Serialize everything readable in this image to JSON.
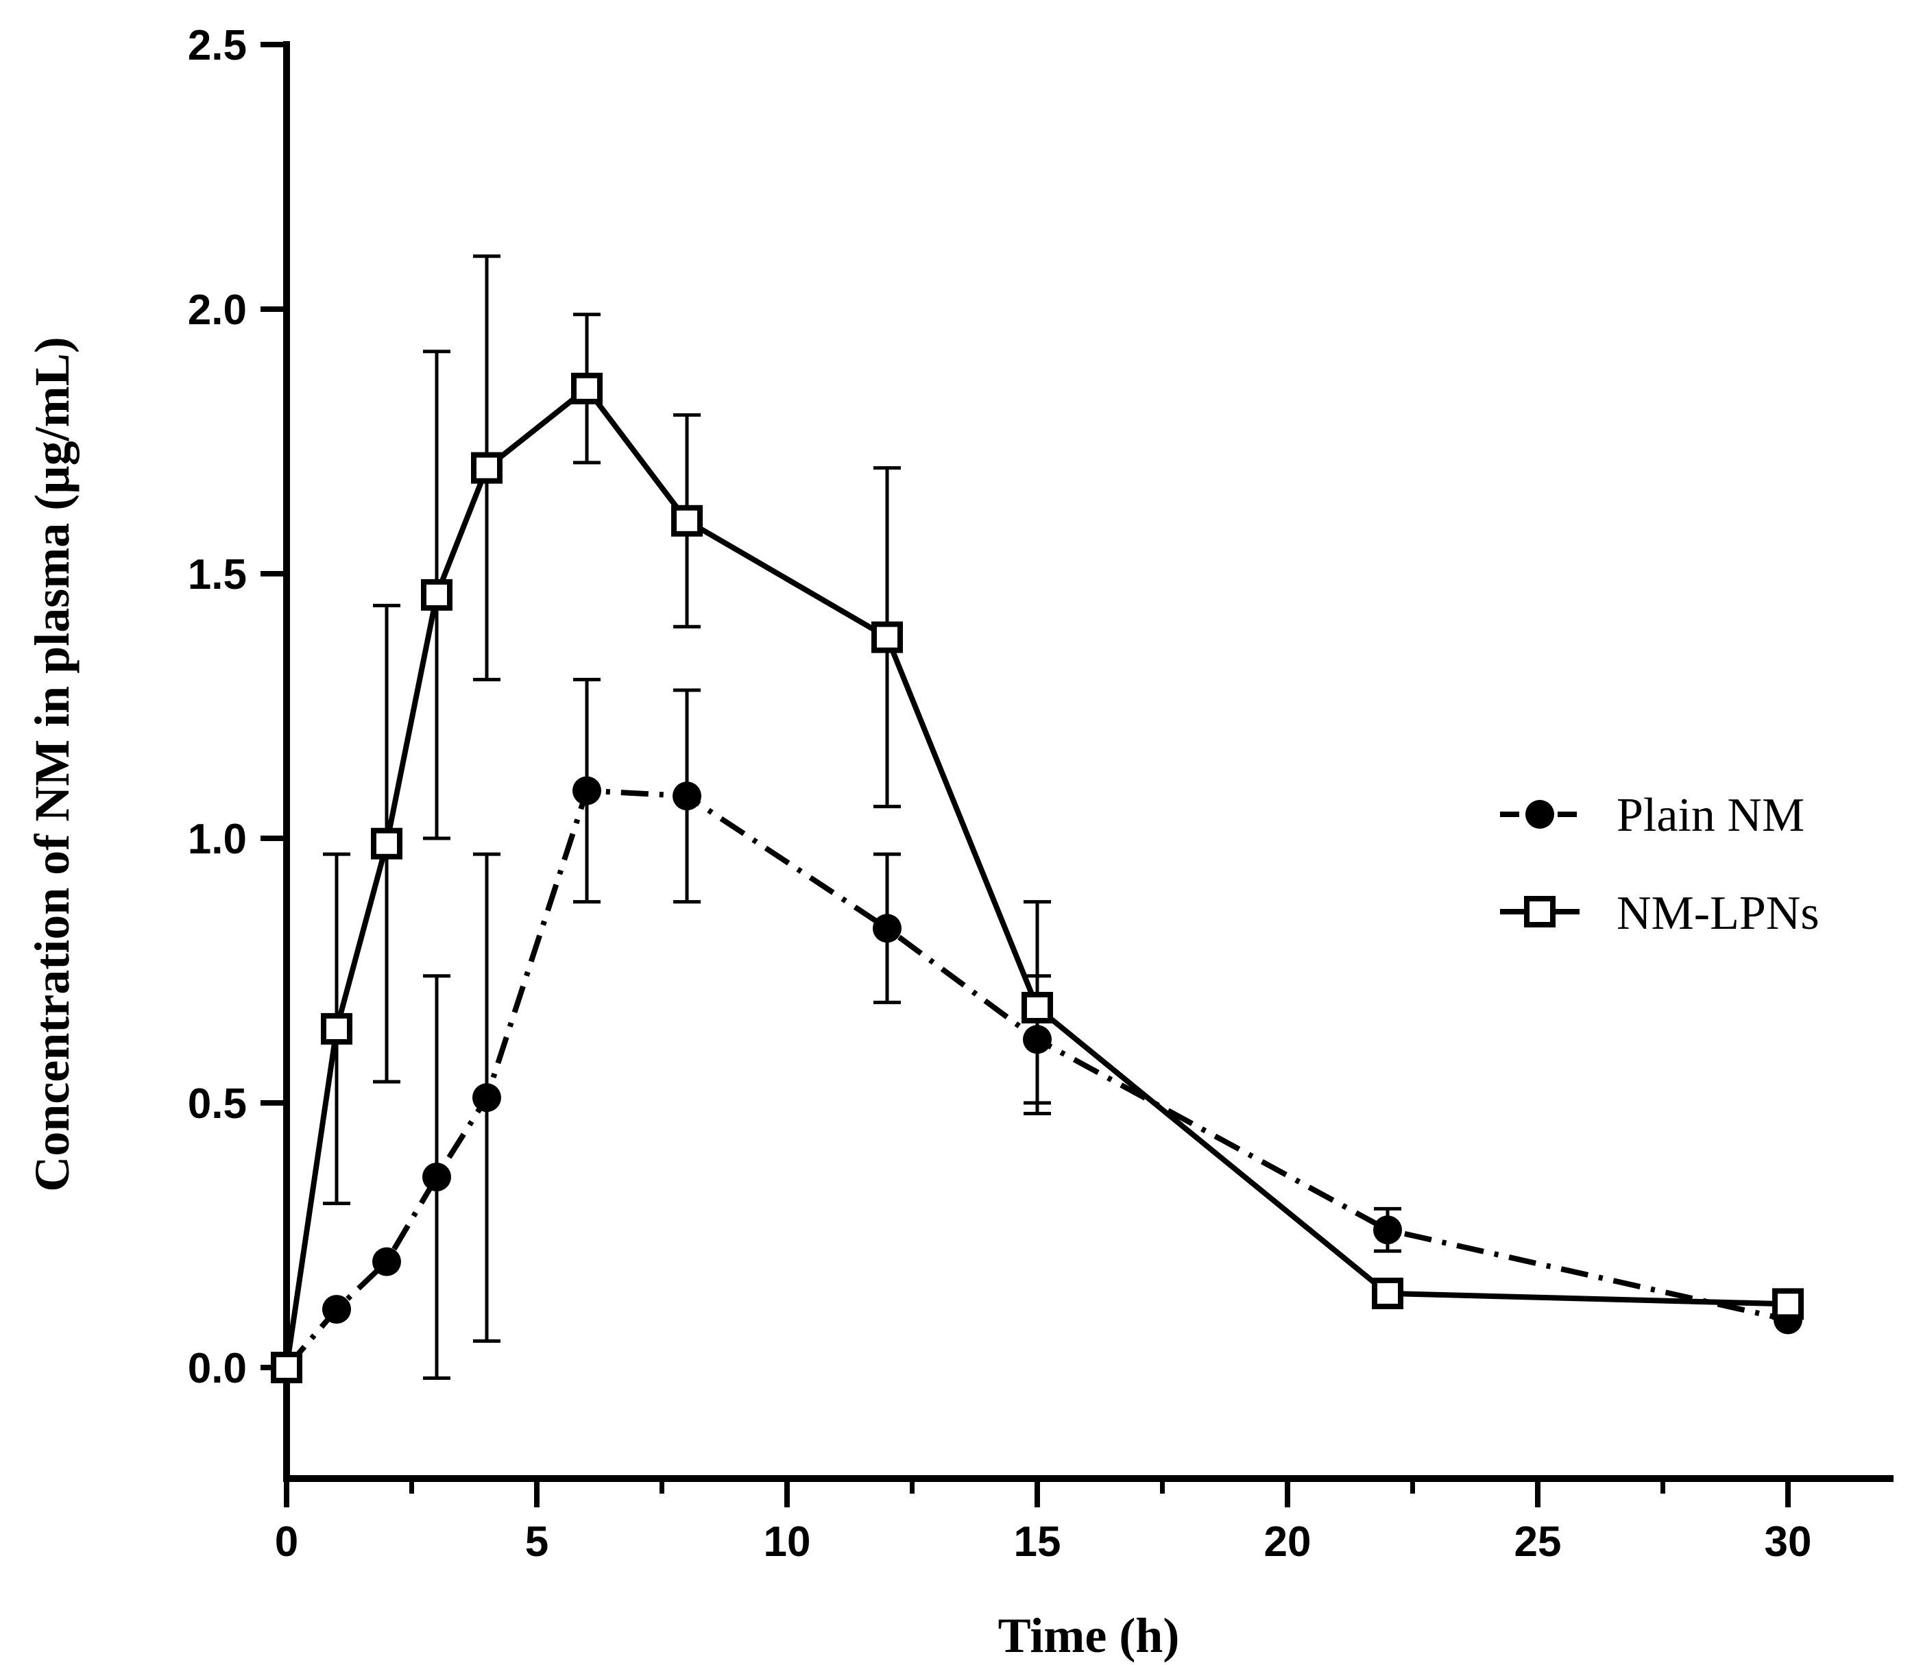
{
  "chart_data": {
    "type": "line",
    "title": "",
    "xlabel": "Time (h)",
    "ylabel": "Concentration of NM in plasma (µg/mL)",
    "xlim": [
      0,
      32.5
    ],
    "ylim": [
      -0.2,
      2.5
    ],
    "xticks": [
      0,
      5,
      10,
      15,
      20,
      25,
      30
    ],
    "xtick_labels": [
      "0",
      "5",
      "10",
      "15",
      "20",
      "25",
      "30"
    ],
    "yticks": [
      0.0,
      0.5,
      1.0,
      1.5,
      2.0,
      2.5
    ],
    "ytick_labels": [
      "0.0",
      "0.5",
      "1.0",
      "1.5",
      "2.0",
      "2.5"
    ],
    "grid": false,
    "legend_position": "right",
    "series": [
      {
        "name": "Plain NM",
        "marker": "filled-circle",
        "line_style": "dash-dot",
        "color": "#000000",
        "x": [
          0,
          1,
          2,
          3,
          4,
          6,
          8,
          12,
          15,
          22,
          30
        ],
        "y": [
          0.0,
          0.11,
          0.2,
          0.36,
          0.51,
          1.09,
          1.08,
          0.83,
          0.62,
          0.26,
          0.09
        ],
        "error": [
          null,
          null,
          null,
          0.38,
          0.46,
          0.21,
          0.2,
          0.14,
          0.12,
          0.04,
          null
        ]
      },
      {
        "name": "NM-LPNs",
        "marker": "open-square",
        "line_style": "solid",
        "color": "#000000",
        "x": [
          0,
          1,
          2,
          3,
          4,
          6,
          8,
          12,
          15,
          22,
          30
        ],
        "y": [
          0.0,
          0.64,
          0.99,
          1.46,
          1.7,
          1.85,
          1.6,
          1.38,
          0.68,
          0.14,
          0.12
        ],
        "error": [
          null,
          0.33,
          0.45,
          0.46,
          0.4,
          0.14,
          0.2,
          0.32,
          0.2,
          null,
          null
        ]
      }
    ]
  }
}
